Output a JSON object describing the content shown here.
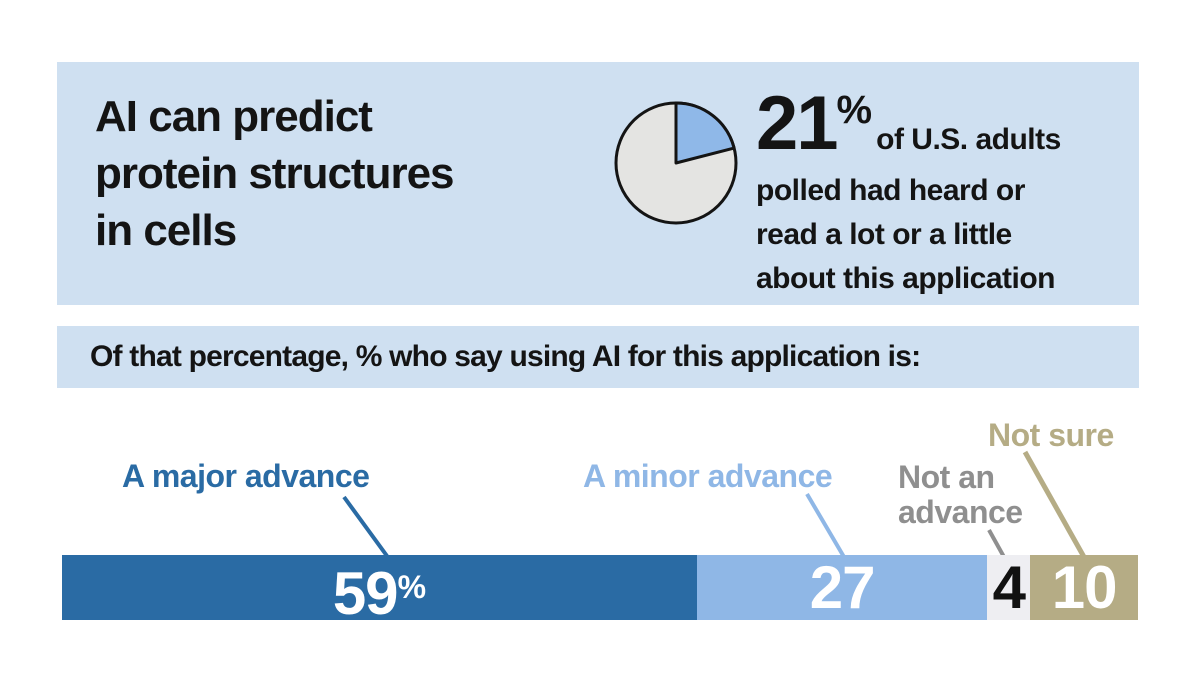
{
  "colors": {
    "panel_bg": "#cfe0f1",
    "ink": "#141414",
    "pie_slice": "#8fb8e8",
    "pie_rest": "#e4e4e2",
    "pie_outline": "#141414"
  },
  "header": {
    "title_lines": [
      "AI can predict",
      "protein structures",
      "in cells"
    ],
    "stat_value": "21",
    "stat_percent_sign": "%",
    "stat_lines": [
      "of U.S. adults",
      "polled had heard or",
      "read a lot or a little",
      "about this application"
    ]
  },
  "subtitle": "Of that percentage, % who say using AI for this application is:",
  "chart_data": {
    "type": "bar",
    "orientation": "horizontal-stacked",
    "topic": "AI can predict protein structures in cells",
    "awareness": {
      "percent": 21,
      "description": "of U.S. adults polled had heard or read a lot or a little about this application"
    },
    "question": "Of that percentage, % who say using AI for this application is:",
    "categories": [
      "A major advance",
      "A minor advance",
      "Not an advance",
      "Not sure"
    ],
    "values": [
      59,
      27,
      4,
      10
    ],
    "value_suffixes": [
      "%",
      "",
      "",
      ""
    ],
    "segment_colors": [
      "#2a6ba4",
      "#8fb7e6",
      "#eeeef2",
      "#b5ac85"
    ],
    "value_colors": [
      "#ffffff",
      "#ffffff",
      "#111111",
      "#ffffff"
    ],
    "label_colors": [
      "#2a6ba4",
      "#8fb7e6",
      "#8f8f8f",
      "#b5ac85"
    ],
    "xlim": [
      0,
      100
    ],
    "legend_position": "above-bar-with-leader-lines"
  }
}
